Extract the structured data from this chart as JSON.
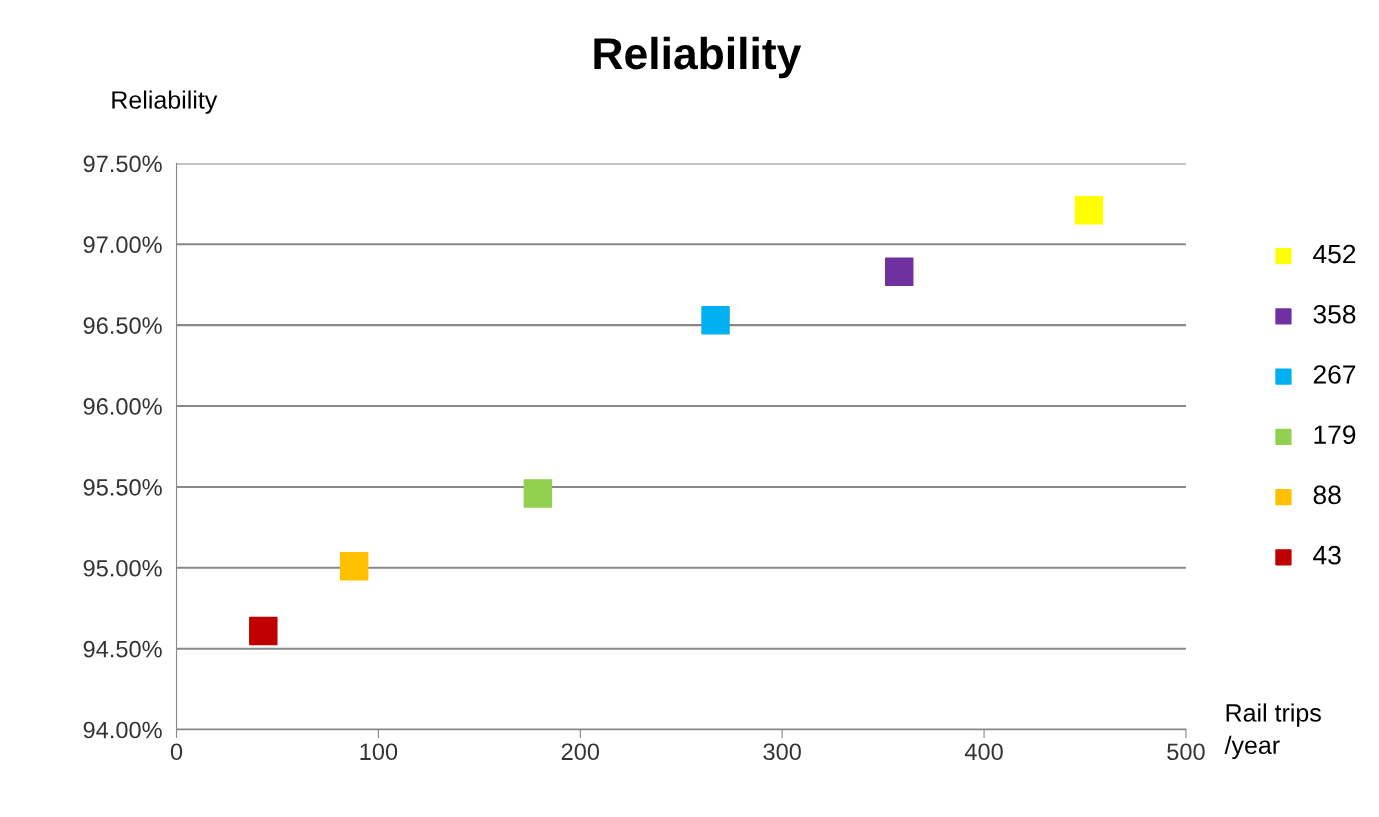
{
  "chart_data": {
    "type": "scatter",
    "title": "Reliability",
    "ylabel": "Reliability",
    "xlabel": "Rail trips\n/year",
    "series": [
      {
        "name": "452",
        "color": "#ffff00",
        "x": [
          452
        ],
        "values": [
          97.21
        ]
      },
      {
        "name": "358",
        "color": "#7030a0",
        "x": [
          358
        ],
        "values": [
          96.83
        ]
      },
      {
        "name": "267",
        "color": "#00b0f0",
        "x": [
          267
        ],
        "values": [
          96.53
        ]
      },
      {
        "name": "179",
        "color": "#92d050",
        "x": [
          179
        ],
        "values": [
          95.46
        ]
      },
      {
        "name": "88",
        "color": "#ffc000",
        "x": [
          88
        ],
        "values": [
          95.01
        ]
      },
      {
        "name": "43",
        "color": "#c00000",
        "x": [
          43
        ],
        "values": [
          94.61
        ]
      }
    ],
    "xlim": [
      0,
      500
    ],
    "xticks": [
      0,
      100,
      200,
      300,
      400,
      500
    ],
    "ylim": [
      94.0,
      97.5
    ],
    "yticks": [
      {
        "value": 94.0,
        "label": "94.00%"
      },
      {
        "value": 94.5,
        "label": "94.50%"
      },
      {
        "value": 95.0,
        "label": "95.00%"
      },
      {
        "value": 95.5,
        "label": "95.50%"
      },
      {
        "value": 96.0,
        "label": "96.00%"
      },
      {
        "value": 96.5,
        "label": "96.50%"
      },
      {
        "value": 97.0,
        "label": "97.00%"
      },
      {
        "value": 97.5,
        "label": "97.50%"
      }
    ],
    "grid": "y",
    "legend": "right",
    "marker": "square"
  }
}
